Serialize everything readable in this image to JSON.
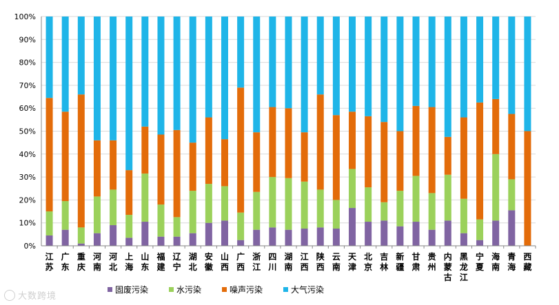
{
  "chart_data": {
    "type": "bar",
    "stacked": "percent",
    "title": "",
    "xlabel": "",
    "ylabel": "",
    "ylim": [
      0,
      100
    ],
    "yticks": [
      "0%",
      "10%",
      "20%",
      "30%",
      "40%",
      "50%",
      "60%",
      "70%",
      "80%",
      "90%",
      "100%"
    ],
    "categories": [
      "江苏",
      "广东",
      "重庆",
      "河南",
      "河北",
      "上海",
      "山东",
      "福建",
      "辽宁",
      "湖北",
      "安徽",
      "山西",
      "广西",
      "浙江",
      "四川",
      "湖南",
      "江西",
      "陕西",
      "云南",
      "天津",
      "北京",
      "吉林",
      "新疆",
      "甘肃",
      "贵州",
      "内蒙古",
      "黑龙江",
      "宁夏",
      "海南",
      "青海",
      "西藏"
    ],
    "series": [
      {
        "name": "固废污染",
        "color": "#8064a2",
        "values": [
          4.5,
          7,
          1,
          5.5,
          9,
          3.5,
          10.5,
          4,
          4,
          5.5,
          10,
          11,
          2.5,
          7,
          8,
          7,
          7.5,
          8,
          7.5,
          16.5,
          10.5,
          11,
          8.5,
          10.5,
          7,
          11,
          5.5,
          2.5,
          11,
          15.5,
          0
        ]
      },
      {
        "name": "水污染",
        "color": "#9bd15b",
        "values": [
          10.5,
          12.5,
          7,
          16,
          15.5,
          10,
          21,
          14,
          8.5,
          18.5,
          17,
          15,
          12,
          16.5,
          22,
          22.5,
          20.5,
          16.5,
          12.5,
          17,
          15,
          8,
          15.5,
          20,
          16,
          20,
          15,
          9,
          29,
          13.5,
          0
        ]
      },
      {
        "name": "噪声污染",
        "color": "#e36c0a",
        "values": [
          49.5,
          39,
          58,
          24.5,
          21.5,
          19.5,
          20.5,
          30.5,
          38,
          21,
          29,
          20.5,
          54.5,
          26,
          30.5,
          30.5,
          21.5,
          41.5,
          37,
          25,
          31,
          35,
          26,
          30.5,
          37.5,
          16.5,
          35.5,
          51,
          24,
          28.5,
          50
        ]
      },
      {
        "name": "大气污染",
        "color": "#1fb5e8",
        "values": [
          35.5,
          41.5,
          34,
          54,
          54,
          67,
          48,
          51.5,
          49.5,
          55,
          44,
          53.5,
          31,
          50.5,
          39.5,
          40,
          50.5,
          34,
          43,
          41.5,
          43.5,
          46,
          50,
          39,
          39.5,
          52.5,
          44,
          37.5,
          36,
          42.5,
          50
        ]
      }
    ],
    "legend_position": "bottom"
  },
  "watermark": "大数跨境"
}
